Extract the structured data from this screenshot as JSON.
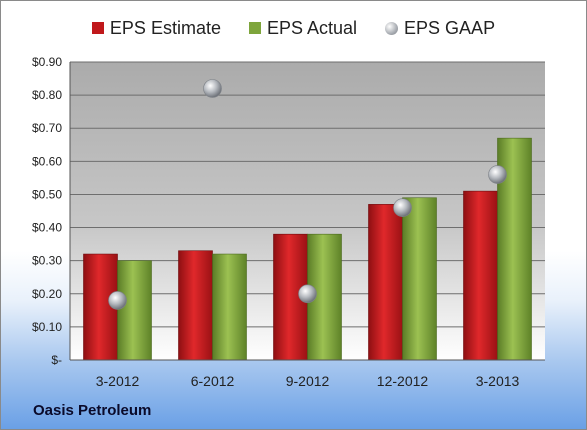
{
  "chart_data": {
    "type": "bar",
    "categories": [
      "3-2012",
      "6-2012",
      "9-2012",
      "12-2012",
      "3-2013"
    ],
    "series": [
      {
        "name": "EPS Estimate",
        "values": [
          0.32,
          0.33,
          0.38,
          0.47,
          0.51
        ],
        "color": "#c0181b"
      },
      {
        "name": "EPS Actual",
        "values": [
          0.3,
          0.32,
          0.38,
          0.49,
          0.67
        ],
        "color": "#7ea53c"
      }
    ],
    "markers": {
      "name": "EPS GAAP",
      "values": [
        0.18,
        0.82,
        0.2,
        0.46,
        0.56
      ],
      "color": "#a8acb2"
    },
    "ylim": [
      0,
      0.9
    ],
    "yticks": [
      0,
      0.1,
      0.2,
      0.3,
      0.4,
      0.5,
      0.6,
      0.7,
      0.8,
      0.9
    ],
    "ytick_labels": [
      "$-",
      "$0.10",
      "$0.20",
      "$0.30",
      "$0.40",
      "$0.50",
      "$0.60",
      "$0.70",
      "$0.80",
      "$0.90"
    ],
    "grid": true,
    "legend_position": "top"
  },
  "footer": {
    "company": "Oasis Petroleum"
  }
}
